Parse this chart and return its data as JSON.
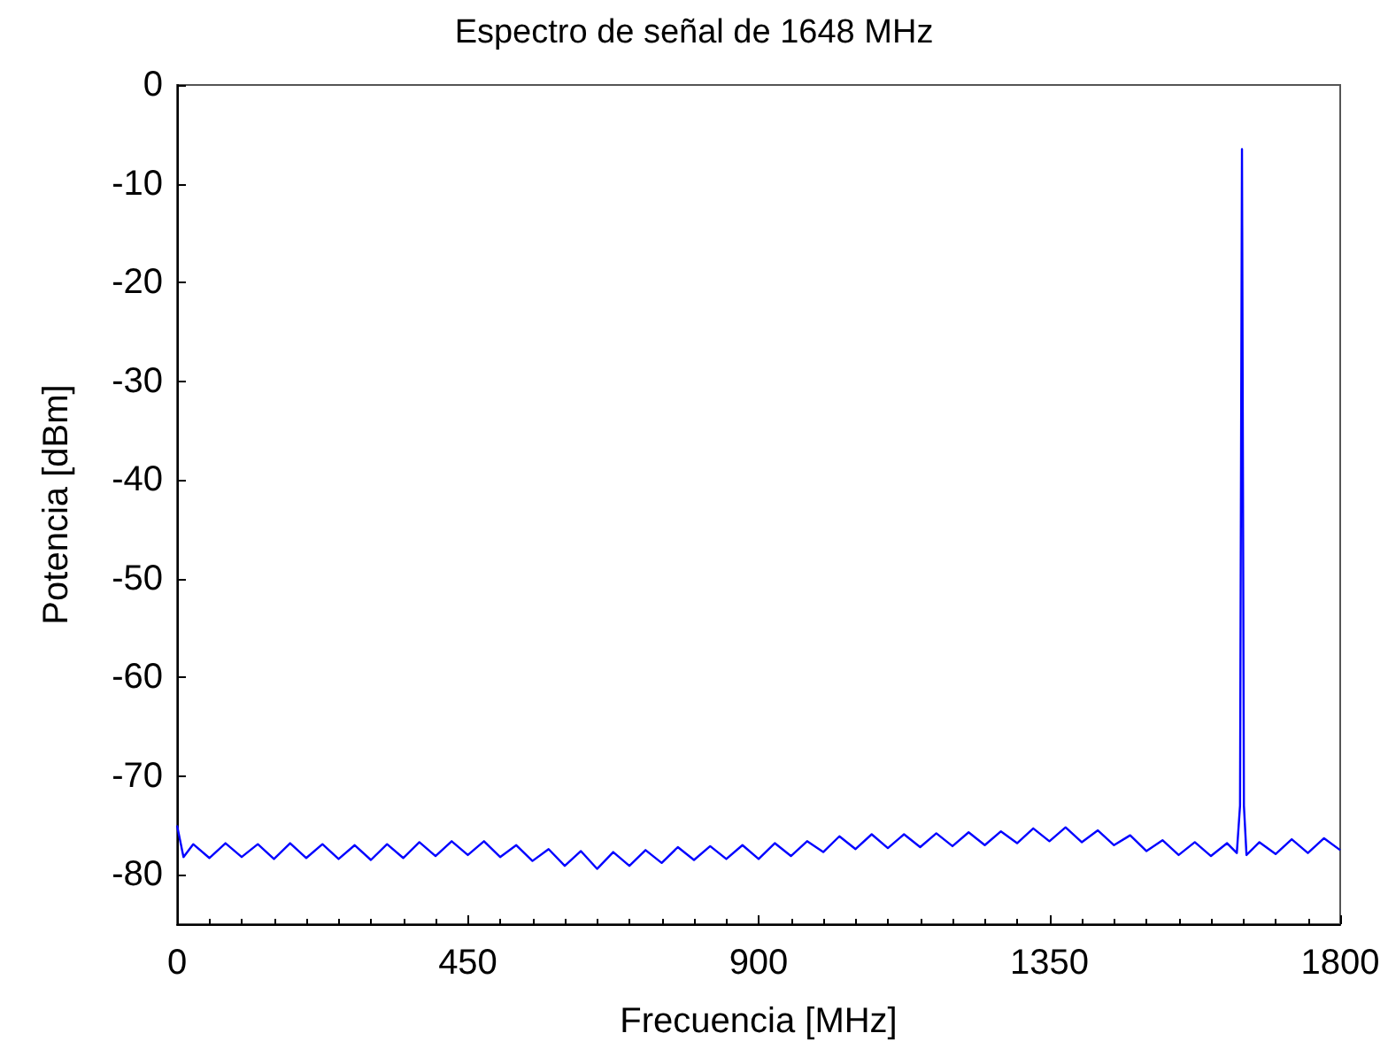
{
  "chart_data": {
    "type": "line",
    "title": "Espectro de señal de 1648 MHz",
    "xlabel": "Frecuencia [MHz]",
    "ylabel": "Potencia [dBm]",
    "xlim": [
      0,
      1800
    ],
    "xticks": [
      0,
      450,
      900,
      1350,
      1800
    ],
    "ylim": [
      -85,
      0
    ],
    "yticks": [
      -80,
      -70,
      -60,
      -50,
      -40,
      -30,
      -20,
      -10,
      0
    ],
    "marker": "none",
    "line_style": "solid",
    "series": [
      {
        "color": "#0000ff",
        "x": [
          0,
          10,
          25,
          50,
          75,
          100,
          125,
          150,
          175,
          200,
          225,
          250,
          275,
          300,
          325,
          350,
          375,
          400,
          425,
          450,
          475,
          500,
          525,
          550,
          575,
          600,
          625,
          650,
          675,
          700,
          725,
          750,
          775,
          800,
          825,
          850,
          875,
          900,
          925,
          950,
          975,
          1000,
          1025,
          1050,
          1075,
          1100,
          1125,
          1150,
          1175,
          1200,
          1225,
          1250,
          1275,
          1300,
          1325,
          1350,
          1375,
          1400,
          1425,
          1450,
          1475,
          1500,
          1525,
          1550,
          1575,
          1600,
          1625,
          1640,
          1645,
          1648,
          1651,
          1655,
          1675,
          1700,
          1725,
          1750,
          1775,
          1800
        ],
        "values": [
          -75.0,
          -78.2,
          -76.9,
          -78.3,
          -76.8,
          -78.2,
          -76.9,
          -78.4,
          -76.8,
          -78.3,
          -76.9,
          -78.4,
          -77.0,
          -78.5,
          -76.9,
          -78.3,
          -76.7,
          -78.1,
          -76.6,
          -78.0,
          -76.6,
          -78.2,
          -77.0,
          -78.6,
          -77.4,
          -79.1,
          -77.6,
          -79.4,
          -77.7,
          -79.1,
          -77.5,
          -78.8,
          -77.2,
          -78.5,
          -77.1,
          -78.4,
          -77.0,
          -78.4,
          -76.8,
          -78.1,
          -76.6,
          -77.7,
          -76.1,
          -77.4,
          -75.9,
          -77.3,
          -75.9,
          -77.2,
          -75.8,
          -77.1,
          -75.7,
          -77.0,
          -75.6,
          -76.8,
          -75.3,
          -76.6,
          -75.2,
          -76.7,
          -75.5,
          -77.0,
          -76.0,
          -77.6,
          -76.5,
          -78.0,
          -76.7,
          -78.1,
          -76.8,
          -77.8,
          -73,
          -6.5,
          -73,
          -78.0,
          -76.7,
          -77.9,
          -76.4,
          -77.8,
          -76.3,
          -77.5
        ]
      }
    ]
  }
}
